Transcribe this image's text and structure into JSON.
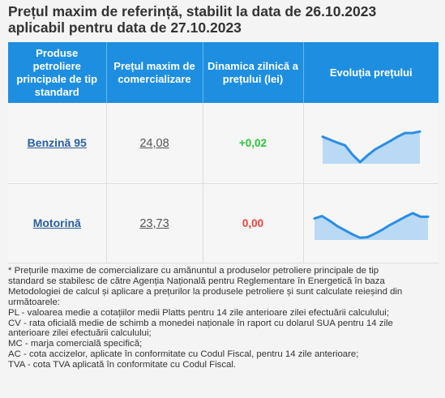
{
  "title": {
    "line1": "Prețul maxim de referință, stabilit la data de 26.10.2023",
    "line2": "aplicabil pentru data de 27.10.2023"
  },
  "table": {
    "headers": [
      "Produse petroliere principale de tip standard",
      "Prețul maxim de comercializare",
      "Dinamica zilnică a prețului (lei)",
      "Evoluția prețului"
    ],
    "rows": [
      {
        "product": "Benzină 95",
        "price": "24,08",
        "dynamic": "+0,02",
        "dynamic_color": "#2ec43a",
        "trend": [
          0.68,
          0.6,
          0.52,
          0.45,
          0.2,
          0.0,
          0.18,
          0.34,
          0.45,
          0.56,
          0.68,
          0.78,
          0.78,
          0.82
        ]
      },
      {
        "product": "Motorină",
        "price": "23,73",
        "dynamic": "0,00",
        "dynamic_color": "#e8433a",
        "trend": [
          0.68,
          0.76,
          0.6,
          0.42,
          0.28,
          0.14,
          0.02,
          0.04,
          0.16,
          0.3,
          0.46,
          0.6,
          0.74,
          0.86,
          0.74,
          0.74
        ]
      }
    ]
  },
  "notes": [
    "* Prețurile maxime de comercializare cu amănuntul a produselor petroliere principale de tip",
    "standard se stabilesc de către Agenția Națională pentru Reglementare în Energetică în baza",
    "Metodologiei de calcul și aplicare a prețurilor la produsele petroliere și sunt calculate reieșind din",
    "următoarele:",
    "PL - valoarea medie a cotațiilor medii Platts pentru 14 zile anterioare zilei efectuării calculului;",
    "CV - rata oficială medie de schimb a monedei naționale în raport cu dolarul SUA pentru 14 zile",
    "anterioare zilei efectuării calculului;",
    "MC - marja comercială specifică;",
    "AC - cota accizelor, aplicate în conformitate cu Codul Fiscal, pentru 14 zile anterioare;",
    "TVA - cota TVA aplicată în conformitate cu Codul Fiscal."
  ],
  "colors": {
    "header_bg": "#1e8fe0",
    "spark_line": "#2b8ee3",
    "spark_fill": "#b9d9f4"
  }
}
